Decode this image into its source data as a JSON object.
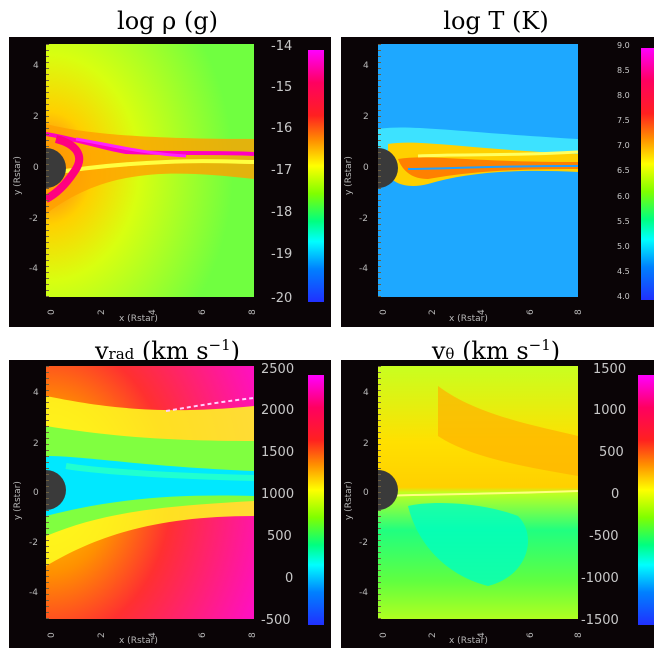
{
  "panels": [
    {
      "id": "density",
      "title": "log ρ (g)",
      "xlabel": "x (Rstar)",
      "ylabel": "y (Rstar)",
      "xticks": [
        "0",
        "2",
        "4",
        "6",
        "8"
      ],
      "yticks": [
        "4",
        "2",
        "0",
        "-2",
        "-4"
      ],
      "colorbar_ticks": [
        "-14",
        "-15",
        "-16",
        "-17",
        "-18",
        "-19",
        "-20"
      ],
      "colorbar_range": [
        -20,
        -14
      ],
      "colormap": [
        "#ff00ff",
        "#ff0080",
        "#ff2020",
        "#ff8000",
        "#ffff00",
        "#80ff00",
        "#00ff80",
        "#00ffff",
        "#0080ff",
        "#2020ff"
      ],
      "background_color": "#a8ff40"
    },
    {
      "id": "temperature",
      "title": "log T (K)",
      "xlabel": "x (Rstar)",
      "ylabel": "y (Rstar)",
      "xticks": [
        "0",
        "2",
        "4",
        "6",
        "8"
      ],
      "yticks": [
        "4",
        "2",
        "0",
        "-2",
        "-4"
      ],
      "colorbar_ticks": [
        "9.0",
        "8.5",
        "8.0",
        "7.5",
        "7.0",
        "6.5",
        "6.0",
        "5.5",
        "5.0",
        "4.5",
        "4.0"
      ],
      "colorbar_range": [
        4.0,
        9.0
      ],
      "colormap": [
        "#ff00ff",
        "#ff0080",
        "#ff2020",
        "#ff8000",
        "#ffff00",
        "#80ff00",
        "#00ff80",
        "#00ffff",
        "#0080ff",
        "#2020ff"
      ],
      "background_color": "#1ea8ff"
    },
    {
      "id": "radial-velocity",
      "title_main": "v",
      "title_sub": "rad",
      "title_unit": "(km s",
      "title_sup": "−1",
      "title_close": ")",
      "xlabel": "x (Rstar)",
      "ylabel": "y (Rstar)",
      "xticks": [
        "0",
        "2",
        "4",
        "6",
        "8"
      ],
      "yticks": [
        "4",
        "2",
        "0",
        "-2",
        "-4"
      ],
      "colorbar_ticks": [
        "2500",
        "2000",
        "1500",
        "1000",
        "500",
        "0",
        "-500"
      ],
      "colorbar_range": [
        -500,
        2500
      ],
      "colormap": [
        "#ff00ff",
        "#ff0080",
        "#ff2020",
        "#ff8000",
        "#ffff00",
        "#80ff00",
        "#00ff80",
        "#00ffff",
        "#0080ff",
        "#2020ff"
      ],
      "background_color": "#ff10c0"
    },
    {
      "id": "theta-velocity",
      "title_main": "v",
      "title_sub": "θ",
      "title_unit": "(km s",
      "title_sup": "−1",
      "title_close": ")",
      "xlabel": "x (Rstar)",
      "ylabel": "y (Rstar)",
      "xticks": [
        "0",
        "2",
        "4",
        "6",
        "8"
      ],
      "yticks": [
        "4",
        "2",
        "0",
        "-2",
        "-4"
      ],
      "colorbar_ticks": [
        "1500",
        "1000",
        "500",
        "0",
        "-500",
        "-1000",
        "-1500"
      ],
      "colorbar_range": [
        -1500,
        1500
      ],
      "colormap": [
        "#ff00ff",
        "#ff0080",
        "#ff2020",
        "#ff8000",
        "#ffff00",
        "#80ff00",
        "#00ff80",
        "#00ffff",
        "#0080ff",
        "#2020ff"
      ],
      "background_color": "#c8ff20"
    }
  ]
}
